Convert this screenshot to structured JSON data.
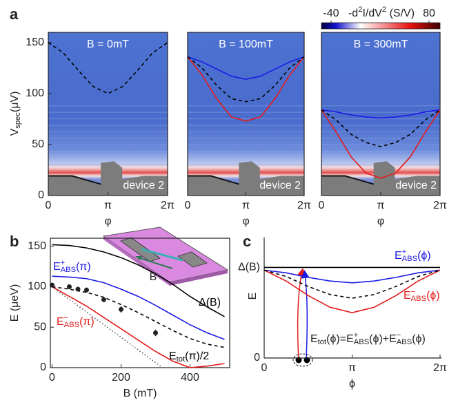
{
  "chart_data": [
    {
      "type": "line",
      "panel_label": "a",
      "title": "B = 0mT",
      "annotation": "device 2",
      "background": "heatmap",
      "frame": true,
      "x": [
        0,
        0.7854,
        1.5708,
        2.3562,
        3.1416,
        3.927,
        4.7124,
        5.4978,
        6.2832
      ],
      "xlim": [
        0,
        6.2832
      ],
      "xticks": [
        0,
        {
          "value": 3.1416,
          "label": "π"
        },
        {
          "value": 6.2832,
          "label": "2π"
        }
      ],
      "xlabel": "φ",
      "ylim": [
        0,
        160
      ],
      "yticks": [
        0,
        50,
        100,
        150
      ],
      "ylabel": [
        {
          "t": "V"
        },
        {
          "t": "spec",
          "s": "sub"
        },
        {
          "t": "(μV)"
        }
      ],
      "colorbar": {
        "lim": [
          -40,
          80
        ],
        "ticks": [
          -40,
          80
        ],
        "label": [
          {
            "t": "-d"
          },
          {
            "t": "2",
            "s": "sup"
          },
          {
            "t": "I/dV"
          },
          {
            "t": "2",
            "s": "sup"
          },
          {
            "t": " (S/V)"
          }
        ]
      },
      "series": [
        {
          "color": "#000000",
          "style": "dashed",
          "values": [
            150,
            140,
            123,
            107,
            100,
            107,
            123,
            140,
            150
          ]
        }
      ]
    },
    {
      "type": "line",
      "title": "B = 100mT",
      "annotation": "device 2",
      "background": "heatmap",
      "frame": true,
      "x": [
        0,
        0.7854,
        1.5708,
        2.3562,
        3.1416,
        3.927,
        4.7124,
        5.4978,
        6.2832
      ],
      "xlim": [
        0,
        6.2832
      ],
      "xticks": [
        0,
        {
          "value": 3.1416,
          "label": "π"
        },
        {
          "value": 6.2832,
          "label": "2π"
        }
      ],
      "xlabel": "φ",
      "ylim": [
        0,
        160
      ],
      "series": [
        {
          "color": "#1a1ae6",
          "style": "solid",
          "values": [
            136,
            131,
            124,
            117,
            114,
            117,
            124,
            131,
            136
          ]
        },
        {
          "color": "#e61a1a",
          "style": "solid",
          "values": [
            136,
            118,
            95,
            77,
            73,
            77,
            95,
            118,
            136
          ]
        },
        {
          "color": "#000000",
          "style": "dashed",
          "values": [
            136,
            125,
            108,
            95,
            92,
            95,
            108,
            125,
            136
          ]
        }
      ]
    },
    {
      "type": "line",
      "title": "B = 300mT",
      "annotation": "device 2",
      "background": "heatmap",
      "frame": true,
      "x": [
        0,
        0.7854,
        1.5708,
        2.3562,
        3.1416,
        3.927,
        4.7124,
        5.4978,
        6.2832
      ],
      "xlim": [
        0,
        6.2832
      ],
      "xticks": [
        0,
        {
          "value": 3.1416,
          "label": "π"
        },
        {
          "value": 6.2832,
          "label": "2π"
        }
      ],
      "xlabel": "φ",
      "ylim": [
        0,
        160
      ],
      "series": [
        {
          "color": "#1a1ae6",
          "style": "solid",
          "values": [
            84,
            82,
            79,
            77,
            76,
            77,
            79,
            82,
            84
          ]
        },
        {
          "color": "#e61a1a",
          "style": "solid",
          "values": [
            84,
            62,
            38,
            22,
            17,
            22,
            38,
            62,
            84
          ]
        },
        {
          "color": "#000000",
          "style": "dashed",
          "values": [
            84,
            74,
            60,
            52,
            48,
            52,
            60,
            74,
            84
          ]
        }
      ]
    },
    {
      "type": "line",
      "panel_label": "b",
      "frame": true,
      "inset_label": "B",
      "xlim": [
        -5,
        515
      ],
      "xticks": [
        0,
        200,
        400
      ],
      "xlabel": "B (mT)",
      "ylim": [
        0,
        160
      ],
      "yticks": [
        0,
        50,
        100,
        150
      ],
      "ylabel": [
        {
          "t": "E (μeV)"
        }
      ],
      "series": [
        {
          "color": "#000000",
          "style": "solid",
          "label": [
            {
              "t": "Δ(B)"
            }
          ],
          "x": [
            0,
            50,
            100,
            150,
            200,
            250,
            300,
            350,
            400,
            450,
            500
          ],
          "values": [
            152,
            151,
            148,
            143,
            136,
            127,
            116,
            103,
            88,
            75,
            63
          ]
        },
        {
          "color": "#1a1ae6",
          "style": "solid",
          "label": [
            {
              "t": "E"
            },
            {
              "t": "+",
              "s": "sup"
            },
            {
              "t": "ABS",
              "s": "sub"
            },
            {
              "t": "(π)"
            }
          ],
          "x": [
            0,
            50,
            100,
            150,
            200,
            250,
            300,
            350,
            400,
            450,
            500
          ],
          "values": [
            113,
            112,
            110,
            105,
            97,
            88,
            77,
            65,
            53,
            43,
            35
          ]
        },
        {
          "color": "#e61a1a",
          "style": "solid",
          "label": [
            {
              "t": "E"
            },
            {
              "t": "−",
              "s": "sup"
            },
            {
              "t": "ABS",
              "s": "sub"
            },
            {
              "t": "(π)"
            }
          ],
          "x": [
            0,
            50,
            100,
            150,
            200,
            250,
            300,
            350,
            400,
            450,
            500
          ],
          "values": [
            100,
            88,
            76,
            62,
            48,
            34,
            20,
            8,
            0,
            2,
            5
          ]
        },
        {
          "color": "#000000",
          "style": "dashed",
          "label": [
            {
              "t": "E"
            },
            {
              "t": "tot",
              "s": "sub"
            },
            {
              "t": "(π)/2"
            }
          ],
          "x": [
            0,
            50,
            100,
            150,
            200,
            250,
            300,
            350,
            400,
            450,
            500
          ],
          "values": [
            100,
            97,
            93,
            87,
            78,
            68,
            57,
            46,
            36,
            29,
            25
          ]
        },
        {
          "color": "#555555",
          "style": "dotted",
          "x": [
            0,
            320
          ],
          "values": [
            100,
            0
          ]
        }
      ],
      "points": {
        "color": "#222222",
        "x": [
          0,
          50,
          75,
          100,
          150,
          200,
          300
        ],
        "values": [
          102,
          100,
          97,
          96,
          84,
          72,
          43
        ],
        "errors": [
          3,
          3,
          3,
          3,
          3,
          4,
          4
        ]
      }
    },
    {
      "type": "line",
      "panel_label": "c",
      "frame": false,
      "x": [
        0,
        0.7854,
        1.5708,
        2.3562,
        3.1416,
        3.927,
        4.7124,
        5.4978,
        6.2832
      ],
      "xlim": [
        0,
        6.2832
      ],
      "xticks": [
        0,
        {
          "value": 3.1416,
          "label": "π"
        },
        {
          "value": 6.2832,
          "label": "2π"
        }
      ],
      "xlabel": "ϕ",
      "ylim": [
        0,
        1.33
      ],
      "yticks": [
        0,
        {
          "value": 1,
          "label": "Δ(B)"
        }
      ],
      "ylabel": [
        {
          "t": "E"
        }
      ],
      "annotation": [
        {
          "t": "E"
        },
        {
          "t": "tot",
          "s": "sub"
        },
        {
          "t": "(ϕ)=E"
        },
        {
          "t": "+",
          "s": "sup"
        },
        {
          "t": "ABS",
          "s": "sub"
        },
        {
          "t": "(ϕ)+E"
        },
        {
          "t": "−",
          "s": "sup"
        },
        {
          "t": "ABS",
          "s": "sub"
        },
        {
          "t": "(ϕ)"
        }
      ],
      "series": [
        {
          "color": "#000000",
          "style": "solid",
          "values": [
            1,
            1,
            1,
            1,
            1,
            1,
            1,
            1,
            1
          ]
        },
        {
          "color": "#1a1ae6",
          "style": "solid",
          "label": [
            {
              "t": "E"
            },
            {
              "t": "+",
              "s": "sup"
            },
            {
              "t": "ABS",
              "s": "sub"
            },
            {
              "t": "(ϕ)"
            }
          ],
          "values": [
            0.97,
            0.94,
            0.89,
            0.85,
            0.83,
            0.85,
            0.89,
            0.94,
            0.97
          ]
        },
        {
          "color": "#e61a1a",
          "style": "solid",
          "label": [
            {
              "t": "E"
            },
            {
              "t": "−",
              "s": "sup"
            },
            {
              "t": "ABS",
              "s": "sub"
            },
            {
              "t": "(ϕ)"
            }
          ],
          "values": [
            0.97,
            0.85,
            0.69,
            0.56,
            0.5,
            0.56,
            0.69,
            0.85,
            0.97
          ]
        },
        {
          "color": "#000000",
          "style": "dashed",
          "values": [
            0.97,
            0.9,
            0.79,
            0.7,
            0.66,
            0.7,
            0.79,
            0.9,
            0.97
          ]
        }
      ]
    }
  ]
}
